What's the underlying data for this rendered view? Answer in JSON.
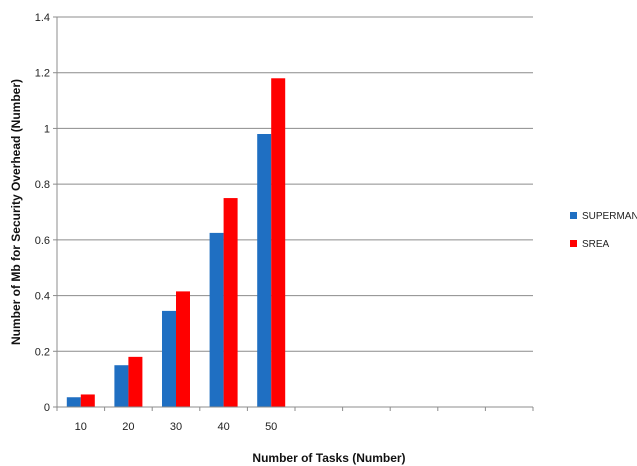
{
  "chart_data": {
    "type": "bar",
    "categories": [
      "10",
      "20",
      "30",
      "40",
      "50",
      "",
      "",
      "",
      "",
      ""
    ],
    "series": [
      {
        "name": "SUPERMAN",
        "color": "#1f6fc2",
        "values": [
          0.035,
          0.15,
          0.345,
          0.625,
          0.98,
          null,
          null,
          null,
          null,
          null
        ]
      },
      {
        "name": "SREA",
        "color": "#ff0000",
        "values": [
          0.045,
          0.18,
          0.415,
          0.75,
          1.18,
          null,
          null,
          null,
          null,
          null
        ]
      }
    ],
    "xlabel": "Number of Tasks (Number)",
    "ylabel": "Number of Mb for Security Overhead (Number)",
    "ylim": [
      0,
      1.4
    ],
    "yticks": [
      "0",
      "0.2",
      "0.4",
      "0.6",
      "0.8",
      "1",
      "1.2",
      "1.4"
    ],
    "grid": true,
    "legend_position": "right"
  }
}
